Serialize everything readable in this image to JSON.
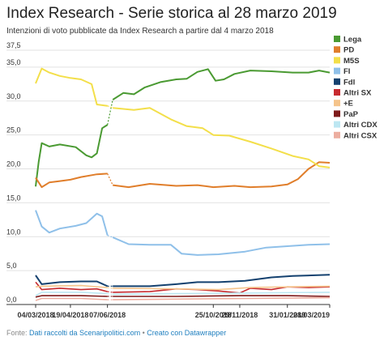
{
  "chart_data": {
    "type": "line",
    "title": "Index Research - Serie storica al 28 marzo 2019",
    "subtitle": "Intenzioni di voto pubblicate da Index Research a partire dal 4 marzo 2018",
    "ylim": [
      0,
      37.5
    ],
    "yticks": [
      "0,0",
      "5,0",
      "10,0",
      "15,0",
      "20,0",
      "25,0",
      "30,0",
      "35,0",
      "37,5"
    ],
    "xlim": [
      "2018-03-04",
      "2019-03-28"
    ],
    "xticks": [
      {
        "date": "2018-03-04",
        "label": "04/03/2018"
      },
      {
        "date": "2018-04-19",
        "label": "19/04/2018"
      },
      {
        "date": "2018-06-07",
        "label": "07/06/2018"
      },
      {
        "date": "2018-10-25",
        "label": "25/10/2018"
      },
      {
        "date": "2018-11-29",
        "label": "29/11/2018"
      },
      {
        "date": "2019-01-31",
        "label": "31/01/2019"
      },
      {
        "date": "2019-03-28",
        "label": "28/03/2019"
      }
    ],
    "legend_position": "right",
    "gap": [
      "2018-06-07",
      "2018-06-14"
    ],
    "series": [
      {
        "name": "Lega",
        "color": "#4a9a32",
        "points": [
          [
            "2018-03-04",
            17.4
          ],
          [
            "2018-03-08",
            21.0
          ],
          [
            "2018-03-12",
            23.8
          ],
          [
            "2018-03-22",
            23.3
          ],
          [
            "2018-04-05",
            23.6
          ],
          [
            "2018-04-26",
            23.2
          ],
          [
            "2018-05-10",
            22.0
          ],
          [
            "2018-05-17",
            21.7
          ],
          [
            "2018-05-24",
            22.3
          ],
          [
            "2018-05-31",
            26.0
          ],
          [
            "2018-06-07",
            26.5
          ],
          [
            "2018-06-14",
            30.2
          ],
          [
            "2018-06-28",
            31.2
          ],
          [
            "2018-07-12",
            31.0
          ],
          [
            "2018-07-26",
            32.0
          ],
          [
            "2018-08-16",
            32.8
          ],
          [
            "2018-09-06",
            33.2
          ],
          [
            "2018-09-20",
            33.3
          ],
          [
            "2018-10-04",
            34.3
          ],
          [
            "2018-10-18",
            34.7
          ],
          [
            "2018-10-28",
            33.0
          ],
          [
            "2018-11-08",
            33.2
          ],
          [
            "2018-11-22",
            34.0
          ],
          [
            "2018-12-13",
            34.5
          ],
          [
            "2019-01-10",
            34.4
          ],
          [
            "2019-02-07",
            34.2
          ],
          [
            "2019-02-28",
            34.2
          ],
          [
            "2019-03-14",
            34.5
          ],
          [
            "2019-03-28",
            34.2
          ]
        ]
      },
      {
        "name": "PD",
        "color": "#e07e2b",
        "points": [
          [
            "2018-03-04",
            18.7
          ],
          [
            "2018-03-12",
            17.3
          ],
          [
            "2018-03-22",
            18.0
          ],
          [
            "2018-04-05",
            18.2
          ],
          [
            "2018-04-19",
            18.4
          ],
          [
            "2018-05-03",
            18.8
          ],
          [
            "2018-05-24",
            19.2
          ],
          [
            "2018-06-07",
            19.3
          ],
          [
            "2018-06-14",
            17.6
          ],
          [
            "2018-07-05",
            17.3
          ],
          [
            "2018-08-02",
            17.8
          ],
          [
            "2018-09-06",
            17.5
          ],
          [
            "2018-10-04",
            17.6
          ],
          [
            "2018-10-25",
            17.3
          ],
          [
            "2018-11-22",
            17.5
          ],
          [
            "2018-12-13",
            17.3
          ],
          [
            "2019-01-10",
            17.4
          ],
          [
            "2019-01-31",
            17.7
          ],
          [
            "2019-02-14",
            18.5
          ],
          [
            "2019-02-28",
            20.0
          ],
          [
            "2019-03-14",
            21.0
          ],
          [
            "2019-03-28",
            20.9
          ]
        ]
      },
      {
        "name": "M5S",
        "color": "#f3df4a",
        "points": [
          [
            "2018-03-04",
            32.6
          ],
          [
            "2018-03-12",
            34.8
          ],
          [
            "2018-03-22",
            34.2
          ],
          [
            "2018-04-05",
            33.7
          ],
          [
            "2018-04-19",
            33.4
          ],
          [
            "2018-05-03",
            33.2
          ],
          [
            "2018-05-17",
            32.5
          ],
          [
            "2018-05-24",
            29.5
          ],
          [
            "2018-06-07",
            29.3
          ],
          [
            "2018-06-14",
            29.0
          ],
          [
            "2018-07-12",
            28.7
          ],
          [
            "2018-08-02",
            29.0
          ],
          [
            "2018-08-30",
            27.3
          ],
          [
            "2018-09-20",
            26.3
          ],
          [
            "2018-10-11",
            26.0
          ],
          [
            "2018-10-25",
            25.0
          ],
          [
            "2018-11-15",
            24.9
          ],
          [
            "2018-12-13",
            24.0
          ],
          [
            "2019-01-10",
            23.0
          ],
          [
            "2019-02-07",
            21.9
          ],
          [
            "2019-02-28",
            21.4
          ],
          [
            "2019-03-14",
            20.4
          ],
          [
            "2019-03-28",
            20.2
          ]
        ]
      },
      {
        "name": "FI",
        "color": "#8fc0e9",
        "points": [
          [
            "2018-03-04",
            13.9
          ],
          [
            "2018-03-12",
            11.5
          ],
          [
            "2018-03-22",
            10.6
          ],
          [
            "2018-04-05",
            11.2
          ],
          [
            "2018-04-26",
            11.6
          ],
          [
            "2018-05-10",
            12.0
          ],
          [
            "2018-05-24",
            13.4
          ],
          [
            "2018-05-31",
            13.0
          ],
          [
            "2018-06-07",
            10.2
          ],
          [
            "2018-06-14",
            9.9
          ],
          [
            "2018-07-05",
            8.9
          ],
          [
            "2018-08-02",
            8.8
          ],
          [
            "2018-08-30",
            8.8
          ],
          [
            "2018-09-13",
            7.5
          ],
          [
            "2018-10-04",
            7.3
          ],
          [
            "2018-11-01",
            7.4
          ],
          [
            "2018-12-06",
            7.8
          ],
          [
            "2019-01-03",
            8.4
          ],
          [
            "2019-01-31",
            8.6
          ],
          [
            "2019-02-28",
            8.8
          ],
          [
            "2019-03-28",
            8.9
          ]
        ]
      },
      {
        "name": "FdI",
        "color": "#14416f",
        "points": [
          [
            "2018-03-04",
            4.3
          ],
          [
            "2018-03-12",
            3.0
          ],
          [
            "2018-04-05",
            3.3
          ],
          [
            "2018-05-03",
            3.4
          ],
          [
            "2018-05-24",
            3.4
          ],
          [
            "2018-06-07",
            2.7
          ],
          [
            "2018-06-14",
            2.7
          ],
          [
            "2018-08-02",
            2.7
          ],
          [
            "2018-09-06",
            3.0
          ],
          [
            "2018-10-04",
            3.3
          ],
          [
            "2018-11-01",
            3.3
          ],
          [
            "2018-12-06",
            3.5
          ],
          [
            "2019-01-10",
            4.0
          ],
          [
            "2019-02-07",
            4.2
          ],
          [
            "2019-03-28",
            4.4
          ]
        ]
      },
      {
        "name": "Altri SX",
        "color": "#c72a2f",
        "points": [
          [
            "2018-03-04",
            3.3
          ],
          [
            "2018-03-12",
            2.2
          ],
          [
            "2018-04-05",
            2.4
          ],
          [
            "2018-05-03",
            2.2
          ],
          [
            "2018-05-24",
            2.3
          ],
          [
            "2018-06-07",
            1.9
          ],
          [
            "2018-06-14",
            1.8
          ],
          [
            "2018-08-02",
            1.9
          ],
          [
            "2018-09-06",
            2.3
          ],
          [
            "2018-10-04",
            2.2
          ],
          [
            "2018-11-01",
            2.0
          ],
          [
            "2018-11-29",
            1.7
          ],
          [
            "2018-12-13",
            2.4
          ],
          [
            "2019-01-10",
            2.2
          ],
          [
            "2019-01-31",
            2.6
          ],
          [
            "2019-02-28",
            2.5
          ],
          [
            "2019-03-28",
            2.6
          ]
        ]
      },
      {
        "name": "+E",
        "color": "#f5c48b",
        "points": [
          [
            "2018-03-04",
            2.6
          ],
          [
            "2018-03-12",
            2.7
          ],
          [
            "2018-05-03",
            2.8
          ],
          [
            "2018-06-07",
            2.5
          ],
          [
            "2018-06-14",
            2.4
          ],
          [
            "2018-09-06",
            2.3
          ],
          [
            "2018-11-01",
            2.2
          ],
          [
            "2018-12-13",
            2.5
          ],
          [
            "2019-01-31",
            2.6
          ],
          [
            "2019-03-28",
            2.7
          ]
        ]
      },
      {
        "name": "PaP",
        "color": "#7e1a1a",
        "points": [
          [
            "2018-03-04",
            1.1
          ],
          [
            "2018-03-12",
            1.3
          ],
          [
            "2018-05-03",
            1.3
          ],
          [
            "2018-06-07",
            1.2
          ],
          [
            "2018-06-14",
            1.2
          ],
          [
            "2018-09-06",
            1.2
          ],
          [
            "2018-11-29",
            1.3
          ],
          [
            "2019-01-31",
            1.3
          ],
          [
            "2019-03-28",
            1.2
          ]
        ]
      },
      {
        "name": "Altri CDX",
        "color": "#bde7f2",
        "points": [
          [
            "2018-03-04",
            1.3
          ],
          [
            "2018-03-12",
            1.8
          ],
          [
            "2018-05-03",
            1.8
          ],
          [
            "2018-06-07",
            1.6
          ],
          [
            "2018-06-14",
            1.5
          ],
          [
            "2018-09-06",
            1.6
          ],
          [
            "2018-12-13",
            1.7
          ],
          [
            "2019-03-28",
            1.8
          ]
        ]
      },
      {
        "name": "Altri CSX",
        "color": "#ecaea0",
        "points": [
          [
            "2018-03-04",
            0.6
          ],
          [
            "2018-03-12",
            0.9
          ],
          [
            "2018-05-03",
            0.9
          ],
          [
            "2018-06-07",
            0.7
          ],
          [
            "2018-06-14",
            0.7
          ],
          [
            "2018-09-06",
            0.8
          ],
          [
            "2018-12-13",
            0.9
          ],
          [
            "2019-03-28",
            1.0
          ]
        ]
      }
    ]
  },
  "footer": {
    "prefix": "Fonte: ",
    "source_link": "Dati raccolti da Scenaripolitici.com",
    "separator": " • ",
    "credit_link": "Creato con Datawrapper"
  }
}
